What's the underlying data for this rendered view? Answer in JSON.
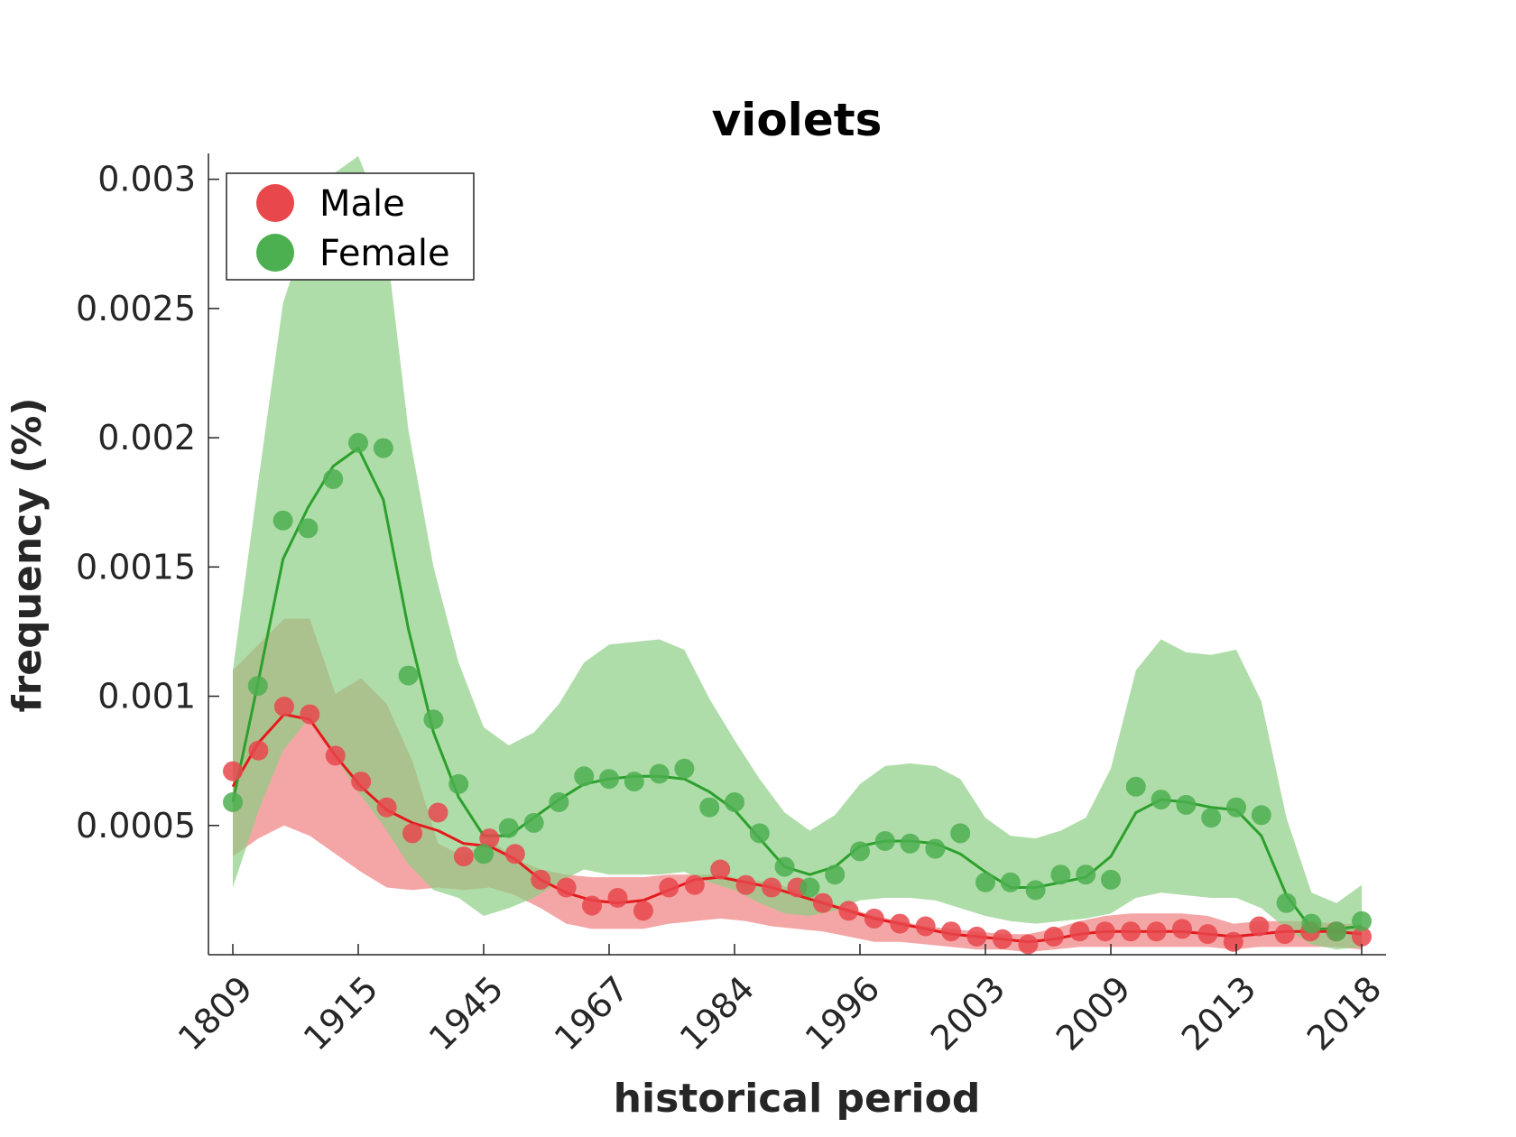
{
  "chart_data": {
    "type": "line",
    "title": "violets",
    "xlabel": "historical period",
    "ylabel": "frequency (%)",
    "ylim": [
      0,
      0.0031
    ],
    "x_tick_labels": [
      "1809",
      "1915",
      "1945",
      "1967",
      "1984",
      "1996",
      "2003",
      "2009",
      "2013",
      "2018"
    ],
    "y_ticks": [
      0.0005,
      0.001,
      0.0015,
      0.002,
      0.0025,
      0.003
    ],
    "y_tick_labels": [
      "0.0005",
      "0.001",
      "0.0015",
      "0.002",
      "0.0025",
      "0.003"
    ],
    "legend_position": "top-left",
    "grid": false,
    "series": [
      {
        "name": "Male",
        "color": "#e41a1c",
        "marker_color": "#e8474c",
        "band_color": "#f08080",
        "points": [
          0.00071,
          0.00079,
          0.00096,
          0.00093,
          0.00077,
          0.00067,
          0.00057,
          0.00047,
          0.00055,
          0.00038,
          0.00045,
          0.00039,
          0.00029,
          0.00026,
          0.00019,
          0.00022,
          0.00017,
          0.00026,
          0.00027,
          0.00033,
          0.00027,
          0.00026,
          0.00026,
          0.0002,
          0.00017,
          0.00014,
          0.00012,
          0.00011,
          9e-05,
          7e-05,
          6e-05,
          4e-05,
          7e-05,
          9e-05,
          9e-05,
          9e-05,
          9e-05,
          0.0001,
          8e-05,
          5e-05,
          0.00011,
          8e-05,
          9e-05,
          9e-05,
          7e-05
        ],
        "line": [
          0.00065,
          0.00082,
          0.00093,
          0.00091,
          0.00077,
          0.00065,
          0.00056,
          0.00051,
          0.00048,
          0.00043,
          0.00042,
          0.00037,
          0.00029,
          0.00024,
          0.00021,
          0.0002,
          0.00021,
          0.00025,
          0.00029,
          0.0003,
          0.00028,
          0.00026,
          0.00023,
          0.0002,
          0.00017,
          0.00014,
          0.00012,
          0.0001,
          8e-05,
          7e-05,
          6e-05,
          5e-05,
          6e-05,
          8e-05,
          9e-05,
          9e-05,
          9e-05,
          9e-05,
          8e-05,
          7e-05,
          8e-05,
          9e-05,
          9e-05,
          9e-05,
          8e-05
        ],
        "upper": [
          0.0011,
          0.0012,
          0.0013,
          0.0013,
          0.00101,
          0.00107,
          0.00097,
          0.00075,
          0.00043,
          0.00038,
          0.00045,
          0.00037,
          0.00033,
          0.00031,
          0.0003,
          0.0003,
          0.0003,
          0.00031,
          0.00031,
          0.00031,
          0.00029,
          0.00028,
          0.00025,
          0.00021,
          0.00018,
          0.00015,
          0.00013,
          0.00011,
          0.0001,
          9e-05,
          8e-05,
          8e-05,
          0.0001,
          0.00013,
          0.00015,
          0.00016,
          0.00016,
          0.00016,
          0.00015,
          0.00012,
          0.00013,
          0.00013,
          0.00013,
          0.00012,
          0.00012
        ],
        "lower": [
          0.00038,
          0.00045,
          0.0005,
          0.00046,
          0.00039,
          0.00032,
          0.00026,
          0.00025,
          0.00026,
          0.00025,
          0.00026,
          0.00023,
          0.00018,
          0.00012,
          0.0001,
          0.0001,
          0.0001,
          0.00012,
          0.00013,
          0.00014,
          0.00013,
          0.00011,
          0.0001,
          9e-05,
          7e-05,
          5e-05,
          5e-05,
          4e-05,
          3e-05,
          2e-05,
          2e-05,
          1e-05,
          2e-05,
          3e-05,
          3e-05,
          3e-05,
          3e-05,
          3e-05,
          3e-05,
          2e-05,
          3e-05,
          3e-05,
          3e-05,
          3e-05,
          2e-05
        ]
      },
      {
        "name": "Female",
        "color": "#2ca02c",
        "marker_color": "#4caf50",
        "band_color": "#8dce85",
        "points": [
          0.00059,
          0.00104,
          0.00168,
          0.00165,
          0.00184,
          0.00198,
          0.00196,
          0.00108,
          0.00091,
          0.00066,
          0.00039,
          0.00049,
          0.00051,
          0.00059,
          0.00069,
          0.00068,
          0.00067,
          0.0007,
          0.00072,
          0.00057,
          0.00059,
          0.00047,
          0.00034,
          0.00026,
          0.00031,
          0.0004,
          0.00044,
          0.00043,
          0.00041,
          0.00047,
          0.00028,
          0.00028,
          0.00025,
          0.00031,
          0.00031,
          0.00029,
          0.00065,
          0.0006,
          0.00058,
          0.00053,
          0.00057,
          0.00054,
          0.0002,
          0.00012,
          9e-05,
          0.00013
        ],
        "line": [
          0.00059,
          0.00105,
          0.00153,
          0.00173,
          0.00189,
          0.00196,
          0.00176,
          0.00126,
          0.00086,
          0.00061,
          0.00046,
          0.00046,
          0.00053,
          0.0006,
          0.00066,
          0.00068,
          0.00069,
          0.00069,
          0.00068,
          0.00063,
          0.00056,
          0.00045,
          0.00034,
          0.00031,
          0.00034,
          0.00042,
          0.00044,
          0.00044,
          0.00043,
          0.00039,
          0.00032,
          0.00026,
          0.00026,
          0.00028,
          0.0003,
          0.00038,
          0.00055,
          0.0006,
          0.00059,
          0.00057,
          0.00056,
          0.00046,
          0.00023,
          0.0001,
          0.0001,
          0.00011
        ],
        "upper": [
          0.0011,
          0.00182,
          0.00252,
          0.00282,
          0.00302,
          0.00309,
          0.00285,
          0.00203,
          0.0015,
          0.00113,
          0.00088,
          0.00081,
          0.00086,
          0.00097,
          0.00113,
          0.0012,
          0.00121,
          0.00122,
          0.00118,
          0.00099,
          0.00083,
          0.00068,
          0.00055,
          0.00048,
          0.00054,
          0.00066,
          0.00073,
          0.00074,
          0.00073,
          0.00068,
          0.00053,
          0.00046,
          0.00045,
          0.00048,
          0.00053,
          0.00072,
          0.0011,
          0.00122,
          0.00117,
          0.00116,
          0.00118,
          0.00098,
          0.00053,
          0.00024,
          0.0002,
          0.00027
        ],
        "lower": [
          0.00026,
          0.00055,
          0.00079,
          0.00091,
          0.00078,
          0.00063,
          0.0005,
          0.00035,
          0.00025,
          0.00022,
          0.00015,
          0.00018,
          0.00022,
          0.00028,
          0.00033,
          0.00031,
          0.00031,
          0.00031,
          0.00032,
          0.00028,
          0.00025,
          0.0002,
          0.00016,
          0.00015,
          0.00017,
          0.00021,
          0.00022,
          0.00022,
          0.00021,
          0.00018,
          0.00015,
          0.00013,
          0.00012,
          0.00013,
          0.00014,
          0.00016,
          0.00022,
          0.00024,
          0.00023,
          0.00022,
          0.00022,
          0.00018,
          0.0001,
          4e-05,
          2e-05,
          3e-05
        ]
      }
    ]
  }
}
